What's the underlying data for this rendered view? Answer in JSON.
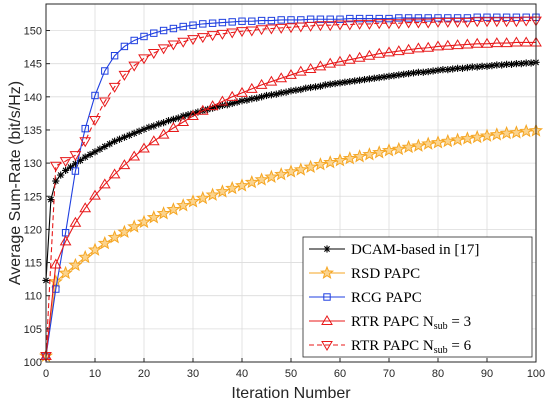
{
  "chart_data": {
    "type": "line",
    "xlabel": "Iteration Number",
    "ylabel": "Average Sum-Rate (bit/s/Hz)",
    "xlim": [
      0,
      100
    ],
    "ylim": [
      100,
      154
    ],
    "xticks": [
      0,
      10,
      20,
      30,
      40,
      50,
      60,
      70,
      80,
      90,
      100
    ],
    "yticks": [
      100,
      105,
      110,
      115,
      120,
      125,
      130,
      135,
      140,
      145,
      150
    ],
    "grid": true,
    "legend_position": "bottom-right",
    "series": [
      {
        "name": "DCAM-based in [17]",
        "legend_label": "DCAM-based in [17]",
        "color": "#000000",
        "line_style": "solid",
        "marker": "asterisk",
        "x": [
          0,
          1,
          2,
          3,
          4,
          5,
          6,
          7,
          8,
          9,
          10,
          11,
          12,
          13,
          14,
          15,
          16,
          17,
          18,
          19,
          20,
          21,
          22,
          23,
          24,
          25,
          26,
          27,
          28,
          29,
          30,
          31,
          32,
          33,
          34,
          35,
          36,
          37,
          38,
          39,
          40,
          41,
          42,
          43,
          44,
          45,
          46,
          47,
          48,
          49,
          50,
          51,
          52,
          53,
          54,
          55,
          56,
          57,
          58,
          59,
          60,
          61,
          62,
          63,
          64,
          65,
          66,
          67,
          68,
          69,
          70,
          71,
          72,
          73,
          74,
          75,
          76,
          77,
          78,
          79,
          80,
          81,
          82,
          83,
          84,
          85,
          86,
          87,
          88,
          89,
          90,
          91,
          92,
          93,
          94,
          95,
          96,
          97,
          98,
          99,
          100
        ],
        "y": [
          112.3,
          124.5,
          127.3,
          128.2,
          128.9,
          129.4,
          129.9,
          130.4,
          130.9,
          131.3,
          131.7,
          132.1,
          132.5,
          132.9,
          133.3,
          133.6,
          133.9,
          134.2,
          134.5,
          134.8,
          135.1,
          135.4,
          135.6,
          135.9,
          136.1,
          136.4,
          136.6,
          136.8,
          137.1,
          137.3,
          137.5,
          137.7,
          137.9,
          138.1,
          138.3,
          138.5,
          138.7,
          138.8,
          139.0,
          139.2,
          139.4,
          139.5,
          139.7,
          139.8,
          140.0,
          140.2,
          140.3,
          140.4,
          140.6,
          140.7,
          140.9,
          141.0,
          141.1,
          141.3,
          141.4,
          141.5,
          141.6,
          141.8,
          141.9,
          142.0,
          142.1,
          142.2,
          142.3,
          142.4,
          142.5,
          142.6,
          142.7,
          142.8,
          142.9,
          143.0,
          143.1,
          143.2,
          143.3,
          143.4,
          143.5,
          143.6,
          143.7,
          143.7,
          143.8,
          143.9,
          144.0,
          144.1,
          144.1,
          144.2,
          144.3,
          144.3,
          144.4,
          144.5,
          144.5,
          144.6,
          144.6,
          144.7,
          144.8,
          144.8,
          144.9,
          144.9,
          145.0,
          145.0,
          145.1,
          145.1,
          145.2
        ]
      },
      {
        "name": "RSD PAPC",
        "legend_label": "RSD PAPC",
        "color": "#F5A623",
        "line_style": "solid",
        "marker": "star",
        "x": [
          0,
          2,
          4,
          6,
          8,
          10,
          12,
          14,
          16,
          18,
          20,
          22,
          24,
          26,
          28,
          30,
          32,
          34,
          36,
          38,
          40,
          42,
          44,
          46,
          48,
          50,
          52,
          54,
          56,
          58,
          60,
          62,
          64,
          66,
          68,
          70,
          72,
          74,
          76,
          78,
          80,
          82,
          84,
          86,
          88,
          90,
          92,
          94,
          96,
          98,
          100
        ],
        "y": [
          100.9,
          112.1,
          113.4,
          114.6,
          115.8,
          116.9,
          117.9,
          118.8,
          119.6,
          120.4,
          121.1,
          121.8,
          122.4,
          123.0,
          123.6,
          124.2,
          124.7,
          125.2,
          125.7,
          126.2,
          126.6,
          127.1,
          127.5,
          127.9,
          128.3,
          128.7,
          129.0,
          129.4,
          129.8,
          130.1,
          130.4,
          130.7,
          131.0,
          131.3,
          131.6,
          131.9,
          132.1,
          132.4,
          132.6,
          132.9,
          133.1,
          133.3,
          133.5,
          133.7,
          133.9,
          134.1,
          134.3,
          134.5,
          134.6,
          134.8,
          134.9
        ]
      },
      {
        "name": "RCG PAPC",
        "legend_label": "RCG PAPC",
        "color": "#1F3FE0",
        "line_style": "solid",
        "marker": "square",
        "x": [
          0,
          2,
          4,
          6,
          8,
          10,
          12,
          14,
          16,
          18,
          20,
          22,
          24,
          26,
          28,
          30,
          32,
          34,
          36,
          38,
          40,
          42,
          44,
          46,
          48,
          50,
          52,
          54,
          56,
          58,
          60,
          62,
          64,
          66,
          68,
          70,
          72,
          74,
          76,
          78,
          80,
          82,
          84,
          86,
          88,
          90,
          92,
          94,
          96,
          98,
          100
        ],
        "y": [
          100.9,
          111.0,
          119.5,
          128.8,
          135.2,
          140.2,
          143.9,
          146.2,
          147.6,
          148.5,
          149.1,
          149.6,
          150.0,
          150.3,
          150.6,
          150.8,
          151.0,
          151.1,
          151.2,
          151.3,
          151.4,
          151.4,
          151.5,
          151.5,
          151.6,
          151.6,
          151.6,
          151.7,
          151.7,
          151.7,
          151.7,
          151.8,
          151.8,
          151.8,
          151.8,
          151.8,
          151.9,
          151.9,
          151.9,
          151.9,
          151.9,
          151.9,
          151.9,
          151.9,
          152.0,
          152.0,
          152.0,
          152.0,
          152.0,
          152.0,
          152.0
        ]
      },
      {
        "name": "RTR PAPC N_sub = 3",
        "legend_label": "RTR PAPC N",
        "legend_subscript": "sub",
        "legend_suffix": " = 3",
        "color": "#E8191A",
        "line_style": "solid",
        "marker": "triangle-up",
        "x": [
          0,
          2,
          4,
          6,
          8,
          10,
          12,
          14,
          16,
          18,
          20,
          22,
          24,
          26,
          28,
          30,
          32,
          34,
          36,
          38,
          40,
          42,
          44,
          46,
          48,
          50,
          52,
          54,
          56,
          58,
          60,
          62,
          64,
          66,
          68,
          70,
          72,
          74,
          76,
          78,
          80,
          82,
          84,
          86,
          88,
          90,
          92,
          94,
          96,
          98,
          100
        ],
        "y": [
          100.9,
          114.7,
          118.2,
          121.0,
          123.2,
          125.1,
          126.8,
          128.3,
          129.7,
          131.0,
          132.2,
          133.3,
          134.3,
          135.3,
          136.2,
          137.1,
          137.9,
          138.6,
          139.3,
          140.0,
          140.6,
          141.2,
          141.8,
          142.3,
          142.8,
          143.3,
          143.8,
          144.2,
          144.6,
          145.0,
          145.3,
          145.6,
          145.9,
          146.2,
          146.5,
          146.7,
          146.9,
          147.1,
          147.3,
          147.4,
          147.6,
          147.7,
          147.8,
          147.9,
          148.0,
          148.0,
          148.1,
          148.1,
          148.2,
          148.2,
          148.2
        ]
      },
      {
        "name": "RTR PAPC N_sub = 6",
        "legend_label": "RTR PAPC N",
        "legend_subscript": "sub",
        "legend_suffix": " = 6",
        "color": "#E8191A",
        "line_style": "dashed",
        "marker": "triangle-down",
        "x": [
          0,
          2,
          4,
          6,
          8,
          10,
          12,
          14,
          16,
          18,
          20,
          22,
          24,
          26,
          28,
          30,
          32,
          34,
          36,
          38,
          40,
          42,
          44,
          46,
          48,
          50,
          52,
          54,
          56,
          58,
          60,
          62,
          64,
          66,
          68,
          70,
          72,
          74,
          76,
          78,
          80,
          82,
          84,
          86,
          88,
          90,
          92,
          94,
          96,
          98,
          100
        ],
        "y": [
          100.9,
          129.6,
          130.3,
          131.2,
          133.3,
          136.5,
          139.3,
          141.5,
          143.3,
          144.7,
          145.8,
          146.6,
          147.3,
          147.9,
          148.3,
          148.7,
          149.0,
          149.3,
          149.5,
          149.7,
          149.9,
          150.0,
          150.2,
          150.3,
          150.4,
          150.5,
          150.6,
          150.7,
          150.8,
          150.8,
          150.9,
          150.9,
          151.0,
          151.0,
          151.1,
          151.1,
          151.1,
          151.2,
          151.2,
          151.2,
          151.3,
          151.3,
          151.3,
          151.3,
          151.4,
          151.4,
          151.4,
          151.4,
          151.4,
          151.5,
          151.5
        ]
      }
    ]
  }
}
